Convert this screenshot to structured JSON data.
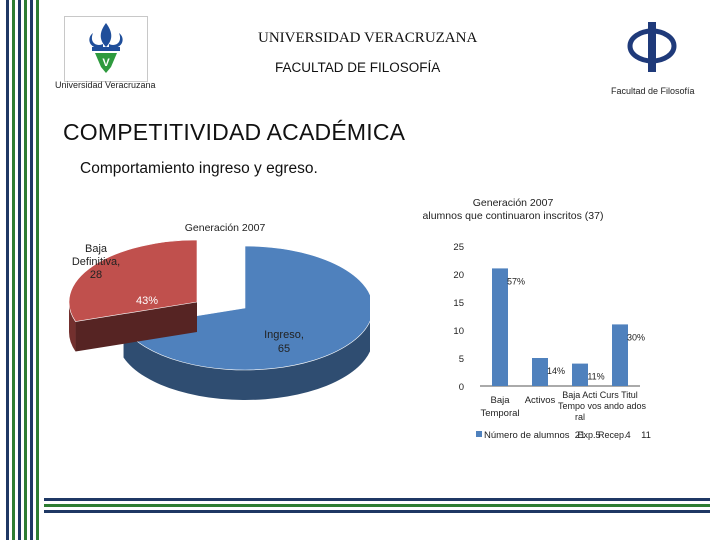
{
  "header": {
    "university": "UNIVERSIDAD VERACRUZANA",
    "faculty": "FACULTAD DE FILOSOFÍA",
    "logo_left_caption": "Universidad Veracruzana",
    "logo_right_caption": "Facultad de Filosofía",
    "logo_right_symbol": "Φ"
  },
  "slide": {
    "title": "COMPETITIVIDAD ACADÉMICA",
    "subtitle": "Comportamiento ingreso y egreso."
  },
  "colors": {
    "pie_ingreso": "#4f81bd",
    "pie_baja": "#c0504d",
    "bar": "#4f81bd",
    "stripe_dark": "#1f3864",
    "stripe_green": "#2e7d32"
  },
  "chart_data": [
    {
      "type": "pie",
      "title": "Generación 2007",
      "style": "3d",
      "slices": [
        {
          "name": "Ingreso",
          "value": 65,
          "label": "Ingreso,\n65",
          "color": "#4f81bd"
        },
        {
          "name": "Baja Definitiva",
          "value": 28,
          "label": "Baja\nDefinitiva,\n28",
          "percent_label": "43%",
          "color": "#c0504d"
        }
      ]
    },
    {
      "type": "bar",
      "title": "Generación 2007\nalumnos que continuaron inscritos (37)",
      "categories": [
        "Baja Temporal",
        "Activos",
        "Cursando Exp. Recep.",
        "Titulados"
      ],
      "category_labels": [
        {
          "text": "Baja\nTemporal"
        },
        {
          "text": "Activos"
        },
        {
          "text": "Cursando\nExp. Recep."
        },
        {
          "text": "Titulados"
        }
      ],
      "overlap_labels": [
        "Baja Acti Curs Titul",
        "Tempo vos ando ados",
        "ral",
        "Exp. Recep."
      ],
      "series": [
        {
          "name": "Número de alumnos",
          "values": [
            21,
            5,
            4,
            11
          ]
        }
      ],
      "data_labels": [
        "57%",
        "14%",
        "11%",
        "30%"
      ],
      "table_values": [
        "21",
        "5",
        "4",
        "11"
      ],
      "yticks": [
        "25",
        "20",
        "15",
        "10",
        "5",
        "0"
      ],
      "ylim": [
        0,
        25
      ],
      "legend": "bottom-left",
      "legend_label": "Número de alumnos"
    }
  ]
}
